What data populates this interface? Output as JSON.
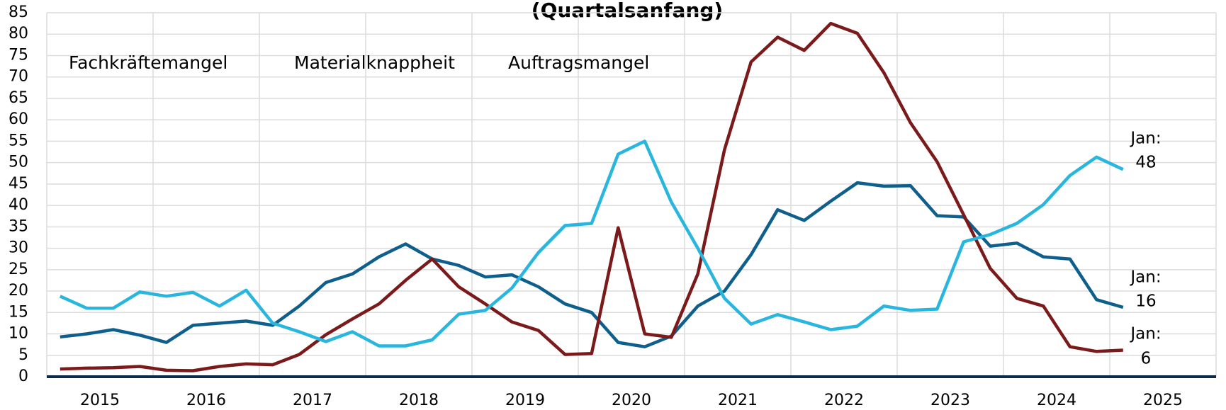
{
  "chart_data": {
    "type": "line",
    "title": "(Quartalsanfang)",
    "x": [
      2015.125,
      2015.375,
      2015.625,
      2015.875,
      2016.125,
      2016.375,
      2016.625,
      2016.875,
      2017.125,
      2017.375,
      2017.625,
      2017.875,
      2018.125,
      2018.375,
      2018.625,
      2018.875,
      2019.125,
      2019.375,
      2019.625,
      2019.875,
      2020.125,
      2020.375,
      2020.625,
      2020.875,
      2021.125,
      2021.375,
      2021.625,
      2021.875,
      2022.125,
      2022.375,
      2022.625,
      2022.875,
      2023.125,
      2023.375,
      2023.625,
      2023.875,
      2024.125,
      2024.375,
      2024.625,
      2024.875,
      2025.125
    ],
    "series": [
      {
        "name": "Fachkräftemangel",
        "color": "#0e5f8c",
        "label_color": "#1a5f8a",
        "values": [
          9.3,
          10,
          11,
          9.7,
          8,
          12,
          12.5,
          13,
          12,
          16.5,
          22,
          24,
          28,
          31,
          27.5,
          26,
          23.3,
          23.8,
          21,
          17,
          15,
          8,
          7,
          9.5,
          16.5,
          20,
          28.5,
          39,
          36.5,
          41,
          45.3,
          44.5,
          44.6,
          37.6,
          37.3,
          30.5,
          31.2,
          28,
          27.5,
          18,
          16.2
        ],
        "annotation": [
          "Jan:",
          "16"
        ]
      },
      {
        "name": "Materialknappheit",
        "color": "#7b1a1a",
        "label_color": "#9b2d5e",
        "values": [
          1.8,
          2,
          2.1,
          2.4,
          1.5,
          1.4,
          2.4,
          3,
          2.8,
          5.2,
          9.8,
          13.5,
          17,
          22.5,
          27.5,
          21,
          17,
          12.8,
          10.8,
          5.2,
          5.4,
          34.8,
          10,
          9.2,
          24,
          53,
          73.5,
          79.3,
          76.2,
          82.5,
          80.2,
          71,
          59.3,
          50.2,
          37.8,
          25.3,
          18.3,
          16.5,
          7,
          5.9,
          6.2
        ],
        "annotation": [
          "Jan:",
          "6"
        ]
      },
      {
        "name": "Auftragsmangel",
        "color": "#29b6de",
        "label_color": "#29b6de",
        "values": [
          18.8,
          16,
          16,
          19.8,
          18.8,
          19.7,
          16.5,
          20.2,
          12.5,
          10.5,
          8.2,
          10.5,
          7.2,
          7.2,
          8.6,
          14.6,
          15.5,
          20.7,
          29,
          35.3,
          35.8,
          52,
          55,
          40.8,
          30,
          18.3,
          12.3,
          14.5,
          12.8,
          11,
          11.8,
          16.5,
          15.5,
          15.8,
          31.5,
          33.2,
          35.8,
          40.2,
          47,
          51.3,
          48.4
        ],
        "annotation": [
          "Jan:",
          "48"
        ]
      }
    ],
    "xlim": [
      2015,
      2026
    ],
    "xticks": [
      {
        "value": 2015.5,
        "label": "2015"
      },
      {
        "value": 2016.5,
        "label": "2016"
      },
      {
        "value": 2017.5,
        "label": "2017"
      },
      {
        "value": 2018.5,
        "label": "2018"
      },
      {
        "value": 2019.5,
        "label": "2019"
      },
      {
        "value": 2020.5,
        "label": "2020"
      },
      {
        "value": 2021.5,
        "label": "2021"
      },
      {
        "value": 2022.5,
        "label": "2022"
      },
      {
        "value": 2023.5,
        "label": "2023"
      },
      {
        "value": 2024.5,
        "label": "2024"
      },
      {
        "value": 2025.5,
        "label": "2025"
      }
    ],
    "ylim": [
      0,
      85
    ],
    "yticks": [
      0,
      5,
      10,
      15,
      20,
      25,
      30,
      35,
      40,
      45,
      50,
      55,
      60,
      65,
      70,
      75,
      80,
      85
    ],
    "grid": true
  }
}
